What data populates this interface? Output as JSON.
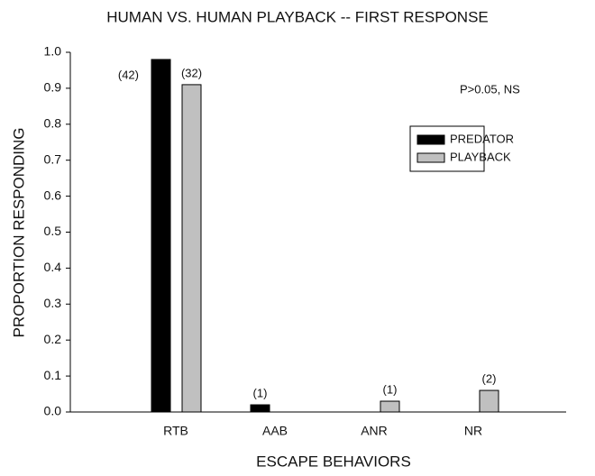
{
  "chart_data": {
    "type": "bar",
    "title": "HUMAN VS. HUMAN PLAYBACK -- FIRST RESPONSE",
    "xlabel": "ESCAPE BEHAVIORS",
    "ylabel": "PROPORTION RESPONDING",
    "annotation": "P>0.05, NS",
    "categories": [
      "RTB",
      "AAB",
      "ANR",
      "NR"
    ],
    "series": [
      {
        "name": "PREDATOR",
        "color": "#000000",
        "values": [
          0.98,
          0.02,
          0,
          0
        ],
        "sample_labels": [
          "(42)",
          "(1)",
          null,
          null
        ]
      },
      {
        "name": "PLAYBACK",
        "color": "#c0c0c0",
        "values": [
          0.91,
          0,
          0.03,
          0.06
        ],
        "sample_labels": [
          "(32)",
          null,
          "(1)",
          "(2)"
        ]
      }
    ],
    "ylim": [
      0,
      1
    ],
    "yticks": [
      {
        "value": 0,
        "label": "0.0"
      },
      0.1,
      0.2,
      0.3,
      0.4,
      0.5,
      0.6,
      0.7,
      0.8,
      0.9,
      {
        "value": 1,
        "label": "1.0"
      }
    ],
    "legend": "upper right"
  }
}
